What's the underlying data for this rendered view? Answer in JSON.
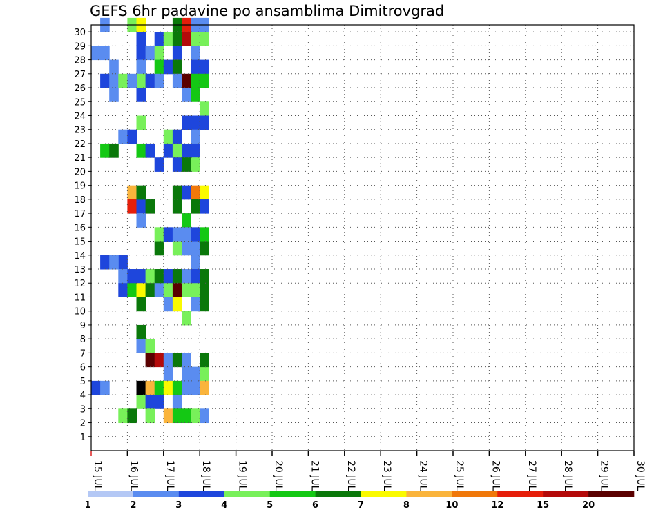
{
  "chart_data": {
    "type": "heatmap",
    "title": "GEFS 6hr padavine po ansamblima Dimitrovgrad",
    "xlabel": "",
    "ylabel": "",
    "x_ticks": [
      "15 JUL",
      "16 JUL",
      "17 JUL",
      "18 JUL",
      "19 JUL",
      "20 JUL",
      "21 JUL",
      "22 JUL",
      "23 JUL",
      "24 JUL",
      "25 JUL",
      "26 JUL",
      "27 JUL",
      "28 JUL",
      "29 JUL",
      "30 JUL"
    ],
    "y_ticks": [
      "1",
      "2",
      "3",
      "4",
      "5",
      "6",
      "7",
      "8",
      "9",
      "10",
      "11",
      "12",
      "13",
      "14",
      "15",
      "16",
      "17",
      "18",
      "19",
      "20",
      "21",
      "22",
      "23",
      "24",
      "25",
      "26",
      "27",
      "28",
      "29",
      "30"
    ],
    "x_range": [
      "15 JUL 00Z",
      "30 JUL 00Z"
    ],
    "time_step_hours": 6,
    "y_range": [
      0,
      30
    ],
    "grid": true,
    "colorbar": {
      "labels": [
        "1",
        "2",
        "3",
        "4",
        "5",
        "6",
        "7",
        "8",
        "10",
        "12",
        "15",
        "20"
      ],
      "colors": [
        "#b4c8f5",
        "#5a8cf0",
        "#1e46dc",
        "#78f05a",
        "#14c814",
        "#0a780a",
        "#fafa00",
        "#fab43c",
        "#f0780a",
        "#e61e0a",
        "#b40a0a",
        "#5a0000"
      ]
    },
    "cells": [
      [
        1,
        30,
        1
      ],
      [
        4,
        30,
        3
      ],
      [
        5,
        30,
        6
      ],
      [
        5,
        29,
        2
      ],
      [
        5,
        28,
        2
      ],
      [
        5,
        27,
        1
      ],
      [
        5,
        26,
        3
      ],
      [
        5,
        25,
        2
      ],
      [
        6,
        28,
        1
      ],
      [
        6,
        26,
        2
      ],
      [
        7,
        29,
        2
      ],
      [
        7,
        28,
        3
      ],
      [
        7,
        27,
        4
      ],
      [
        7,
        26,
        1
      ],
      [
        8,
        29,
        3
      ],
      [
        8,
        27,
        2
      ],
      [
        9,
        30,
        5
      ],
      [
        9,
        29,
        5
      ],
      [
        9,
        28,
        2
      ],
      [
        9,
        27,
        5
      ],
      [
        9,
        26,
        1
      ],
      [
        10,
        30,
        9
      ],
      [
        10,
        29,
        10
      ],
      [
        10,
        26,
        11
      ],
      [
        10,
        25,
        1
      ],
      [
        11,
        30,
        1
      ],
      [
        11,
        29,
        3
      ],
      [
        11,
        28,
        1
      ],
      [
        11,
        27,
        2
      ],
      [
        11,
        26,
        4
      ],
      [
        11,
        25,
        4
      ],
      [
        12,
        30,
        1
      ],
      [
        12,
        29,
        3
      ],
      [
        12,
        27,
        2
      ],
      [
        12,
        26,
        4
      ],
      [
        3,
        22,
        1
      ],
      [
        4,
        22,
        2
      ],
      [
        5,
        23,
        3
      ],
      [
        5,
        21,
        4
      ],
      [
        6,
        21,
        2
      ],
      [
        7,
        20,
        2
      ],
      [
        8,
        22,
        3
      ],
      [
        8,
        21,
        2
      ],
      [
        9,
        22,
        2
      ],
      [
        9,
        21,
        3
      ],
      [
        9,
        20,
        2
      ],
      [
        10,
        23,
        2
      ],
      [
        10,
        21,
        2
      ],
      [
        10,
        20,
        5
      ],
      [
        11,
        23,
        2
      ],
      [
        11,
        22,
        1
      ],
      [
        11,
        21,
        2
      ],
      [
        11,
        20,
        3
      ],
      [
        12,
        24,
        3
      ],
      [
        12,
        23,
        2
      ],
      [
        3,
        13,
        2
      ],
      [
        4,
        18,
        7
      ],
      [
        4,
        17,
        9
      ],
      [
        5,
        17,
        2
      ],
      [
        5,
        18,
        5
      ],
      [
        5,
        16,
        1
      ],
      [
        6,
        17,
        5
      ],
      [
        7,
        15,
        3
      ],
      [
        7,
        14,
        5
      ],
      [
        8,
        15,
        2
      ],
      [
        9,
        18,
        5
      ],
      [
        9,
        17,
        5
      ],
      [
        9,
        15,
        1
      ],
      [
        9,
        14,
        3
      ],
      [
        10,
        18,
        2
      ],
      [
        10,
        16,
        4
      ],
      [
        10,
        15,
        1
      ],
      [
        10,
        14,
        1
      ],
      [
        11,
        18,
        8
      ],
      [
        11,
        17,
        5
      ],
      [
        11,
        15,
        2
      ],
      [
        11,
        14,
        1
      ],
      [
        11,
        13,
        1
      ],
      [
        12,
        18,
        6
      ],
      [
        12,
        17,
        2
      ],
      [
        12,
        15,
        4
      ],
      [
        12,
        14,
        5
      ],
      [
        3,
        12,
        1
      ],
      [
        3,
        11,
        2
      ],
      [
        4,
        12,
        2
      ],
      [
        4,
        11,
        4
      ],
      [
        5,
        12,
        2
      ],
      [
        5,
        11,
        6
      ],
      [
        5,
        10,
        5
      ],
      [
        6,
        12,
        3
      ],
      [
        6,
        11,
        5
      ],
      [
        7,
        12,
        5
      ],
      [
        7,
        11,
        1
      ],
      [
        8,
        12,
        2
      ],
      [
        8,
        11,
        3
      ],
      [
        8,
        10,
        1
      ],
      [
        9,
        12,
        5
      ],
      [
        9,
        11,
        11
      ],
      [
        9,
        10,
        6
      ],
      [
        10,
        12,
        1
      ],
      [
        10,
        11,
        3
      ],
      [
        10,
        9,
        3
      ],
      [
        11,
        12,
        2
      ],
      [
        11,
        11,
        3
      ],
      [
        11,
        10,
        1
      ],
      [
        12,
        12,
        5
      ],
      [
        12,
        11,
        5
      ],
      [
        12,
        10,
        5
      ],
      [
        5,
        8,
        5
      ],
      [
        5,
        7,
        1
      ],
      [
        6,
        7,
        3
      ],
      [
        6,
        6,
        11
      ],
      [
        7,
        6,
        10
      ],
      [
        8,
        6,
        1
      ],
      [
        8,
        5,
        1
      ],
      [
        9,
        6,
        5
      ],
      [
        10,
        6,
        1
      ],
      [
        10,
        5,
        1
      ],
      [
        11,
        5,
        1
      ],
      [
        12,
        5,
        3
      ],
      [
        12,
        6,
        5
      ],
      [
        3,
        2,
        3
      ],
      [
        4,
        2,
        5
      ],
      [
        5,
        3,
        3
      ],
      [
        5,
        4,
        12
      ],
      [
        6,
        4,
        7
      ],
      [
        6,
        3,
        2
      ],
      [
        6,
        2,
        3
      ],
      [
        7,
        4,
        4
      ],
      [
        7,
        3,
        2
      ],
      [
        8,
        4,
        6
      ],
      [
        8,
        2,
        7
      ],
      [
        9,
        4,
        4
      ],
      [
        9,
        3,
        1
      ],
      [
        9,
        2,
        4
      ],
      [
        10,
        4,
        1
      ],
      [
        10,
        2,
        4
      ],
      [
        11,
        4,
        1
      ],
      [
        11,
        2,
        3
      ],
      [
        12,
        4,
        7
      ],
      [
        12,
        2,
        1
      ],
      [
        1,
        26,
        2
      ],
      [
        2,
        26,
        1
      ],
      [
        2,
        27,
        1
      ],
      [
        2,
        25,
        1
      ],
      [
        3,
        26,
        3
      ],
      [
        4,
        26,
        1
      ],
      [
        1,
        21,
        4
      ],
      [
        2,
        21,
        5
      ],
      [
        0,
        28,
        1
      ],
      [
        1,
        28,
        1
      ],
      [
        1,
        13,
        2
      ],
      [
        2,
        13,
        1
      ],
      [
        0,
        4,
        2
      ],
      [
        1,
        4,
        1
      ]
    ]
  }
}
